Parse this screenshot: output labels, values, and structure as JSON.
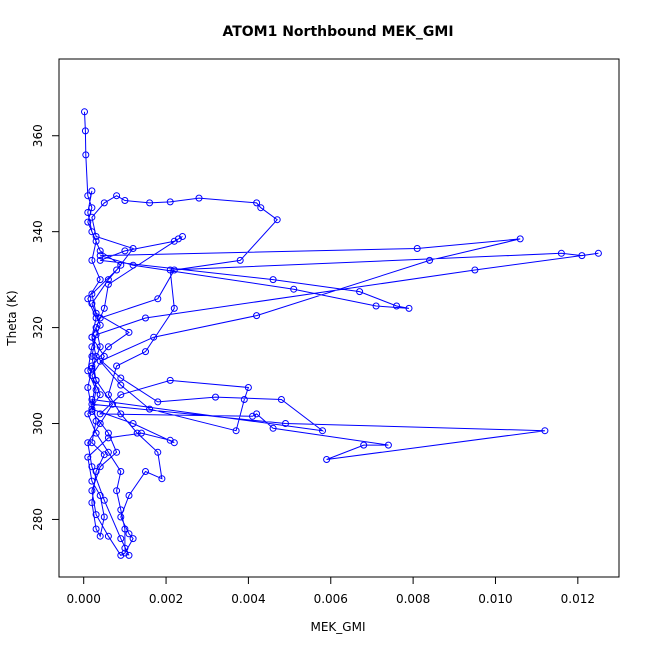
{
  "chart_data": {
    "type": "line",
    "title": "ATOM1 Northbound MEK_GMI",
    "xlabel": "MEK_GMI",
    "ylabel": "Theta (K)",
    "xlim": [
      -0.0006,
      0.013
    ],
    "ylim": [
      268,
      376
    ],
    "xticks": [
      0.0,
      0.002,
      0.004,
      0.006,
      0.008,
      0.01,
      0.012
    ],
    "xtick_labels": [
      "0.000",
      "0.002",
      "0.004",
      "0.006",
      "0.008",
      "0.010",
      "0.012"
    ],
    "yticks": [
      280,
      300,
      320,
      340,
      360
    ],
    "ytick_labels": [
      "280",
      "300",
      "320",
      "340",
      "360"
    ],
    "series": [
      {
        "color": "#0000ff",
        "markers": "open-circle",
        "points": [
          [
            2e-05,
            365.0
          ],
          [
            4e-05,
            361.0
          ],
          [
            5e-05,
            356.0
          ],
          [
            0.0001,
            347.5
          ],
          [
            0.0002,
            345.0
          ],
          [
            0.0001,
            342.0
          ],
          [
            0.0003,
            338.0
          ],
          [
            0.0002,
            334.0
          ],
          [
            0.0004,
            330.0
          ],
          [
            0.0001,
            326.0
          ],
          [
            0.0003,
            322.0
          ],
          [
            0.0002,
            318.0
          ],
          [
            0.0005,
            314.0
          ],
          [
            0.0002,
            310.0
          ],
          [
            0.0004,
            306.0
          ],
          [
            0.0001,
            302.0
          ],
          [
            0.0003,
            298.0
          ],
          [
            0.0006,
            294.0
          ],
          [
            0.0009,
            290.0
          ],
          [
            0.0008,
            286.0
          ],
          [
            0.0009,
            282.0
          ],
          [
            0.001,
            278.0
          ],
          [
            0.001,
            274.0
          ],
          [
            0.0011,
            272.5
          ],
          [
            0.0009,
            276.0
          ],
          [
            0.0005,
            284.0
          ],
          [
            0.0002,
            291.0
          ],
          [
            0.0001,
            296.0
          ],
          [
            0.0004,
            300.0
          ],
          [
            0.0007,
            304.0
          ],
          [
            0.0003,
            309.0
          ],
          [
            0.0002,
            312.0
          ],
          [
            0.0006,
            316.0
          ],
          [
            0.0011,
            319.0
          ],
          [
            0.0003,
            323.0
          ],
          [
            0.0002,
            327.0
          ],
          [
            0.0008,
            332.0
          ],
          [
            0.0012,
            336.5
          ],
          [
            0.0003,
            339.0
          ],
          [
            0.0002,
            343.0
          ],
          [
            0.0005,
            346.0
          ],
          [
            0.0008,
            347.5
          ],
          [
            0.001,
            346.5
          ],
          [
            0.0016,
            346.0
          ],
          [
            0.0021,
            346.2
          ],
          [
            0.0028,
            347.0
          ],
          [
            0.0042,
            346.0
          ],
          [
            0.0043,
            345.0
          ],
          [
            0.0047,
            342.5
          ],
          [
            0.0038,
            334.0
          ],
          [
            0.0022,
            332.0
          ],
          [
            0.0018,
            326.0
          ],
          [
            0.0004,
            322.0
          ],
          [
            0.0002,
            318.0
          ],
          [
            0.0003,
            314.0
          ],
          [
            0.0009,
            309.5
          ],
          [
            0.0018,
            304.5
          ],
          [
            0.0032,
            305.5
          ],
          [
            0.0048,
            305.0
          ],
          [
            0.0058,
            298.5
          ],
          [
            0.0002,
            305.0
          ],
          [
            0.0003,
            300.5
          ],
          [
            0.0002,
            296.0
          ],
          [
            0.0005,
            293.5
          ],
          [
            0.0003,
            290.0
          ],
          [
            0.0002,
            283.5
          ],
          [
            0.0003,
            278.0
          ],
          [
            0.0004,
            276.5
          ],
          [
            0.0005,
            280.5
          ],
          [
            0.0004,
            285.0
          ],
          [
            0.0002,
            288.0
          ],
          [
            0.0001,
            293.0
          ],
          [
            0.0006,
            297.0
          ],
          [
            0.0014,
            298.0
          ],
          [
            0.0021,
            296.5
          ],
          [
            0.0022,
            296.0
          ],
          [
            0.0012,
            300.0
          ],
          [
            0.0002,
            303.0
          ],
          [
            0.0001,
            307.5
          ],
          [
            0.0002,
            311.5
          ],
          [
            0.0004,
            316.0
          ],
          [
            0.0003,
            320.0
          ],
          [
            0.0005,
            324.0
          ],
          [
            0.0006,
            329.0
          ],
          [
            0.0023,
            338.5
          ],
          [
            0.0024,
            339.0
          ],
          [
            0.0022,
            338.0
          ],
          [
            0.001,
            336.0
          ],
          [
            0.0004,
            334.0
          ],
          [
            0.0046,
            330.0
          ],
          [
            0.0067,
            327.5
          ],
          [
            0.0076,
            324.5
          ],
          [
            0.0079,
            324.0
          ],
          [
            0.0071,
            324.5
          ],
          [
            0.0051,
            328.0
          ],
          [
            0.0012,
            333.0
          ],
          [
            0.0004,
            335.0
          ],
          [
            0.0081,
            336.5
          ],
          [
            0.0106,
            338.5
          ],
          [
            0.0084,
            334.0
          ],
          [
            0.0042,
            322.5
          ],
          [
            0.0017,
            318.0
          ],
          [
            0.0004,
            313.0
          ],
          [
            0.0009,
            308.0
          ],
          [
            0.0016,
            303.0
          ],
          [
            0.0037,
            298.5
          ],
          [
            0.0039,
            305.0
          ],
          [
            0.004,
            307.5
          ],
          [
            0.0021,
            309.0
          ],
          [
            0.0009,
            306.0
          ],
          [
            0.0004,
            302.0
          ],
          [
            0.0041,
            301.5
          ],
          [
            0.0042,
            302.0
          ],
          [
            0.0046,
            299.0
          ],
          [
            0.0074,
            295.5
          ],
          [
            0.0068,
            295.5
          ],
          [
            0.0059,
            292.5
          ],
          [
            0.0112,
            298.5
          ],
          [
            0.0049,
            300.0
          ],
          [
            0.0002,
            304.0
          ],
          [
            0.0003,
            309.0
          ],
          [
            0.0002,
            314.0
          ],
          [
            0.0003,
            318.5
          ],
          [
            0.0015,
            322.0
          ],
          [
            0.0095,
            332.0
          ],
          [
            0.0125,
            335.5
          ],
          [
            0.0121,
            335.0
          ],
          [
            0.0116,
            335.5
          ],
          [
            0.0021,
            332.0
          ],
          [
            0.0022,
            324.0
          ],
          [
            0.0015,
            315.0
          ],
          [
            0.0008,
            312.0
          ],
          [
            0.0006,
            306.0
          ],
          [
            0.0009,
            302.0
          ],
          [
            0.0013,
            298.0
          ],
          [
            0.0018,
            294.0
          ],
          [
            0.0019,
            288.5
          ],
          [
            0.0015,
            290.0
          ],
          [
            0.0011,
            285.0
          ],
          [
            0.0009,
            280.5
          ],
          [
            0.0011,
            277.0
          ],
          [
            0.0012,
            276.0
          ],
          [
            0.001,
            273.0
          ],
          [
            0.0009,
            272.5
          ],
          [
            0.0006,
            276.5
          ],
          [
            0.0003,
            281.0
          ],
          [
            0.0002,
            286.0
          ],
          [
            0.0004,
            291.0
          ],
          [
            0.0008,
            294.0
          ],
          [
            0.0006,
            298.0
          ],
          [
            0.0002,
            302.5
          ],
          [
            0.0003,
            307.0
          ],
          [
            0.0001,
            311.0
          ],
          [
            0.0002,
            316.0
          ],
          [
            0.0004,
            320.5
          ],
          [
            0.0002,
            325.0
          ],
          [
            0.0006,
            330.0
          ],
          [
            0.0009,
            333.0
          ],
          [
            0.0004,
            336.0
          ],
          [
            0.0002,
            340.0
          ],
          [
            0.0001,
            344.0
          ],
          [
            0.0002,
            348.5
          ]
        ]
      }
    ]
  }
}
